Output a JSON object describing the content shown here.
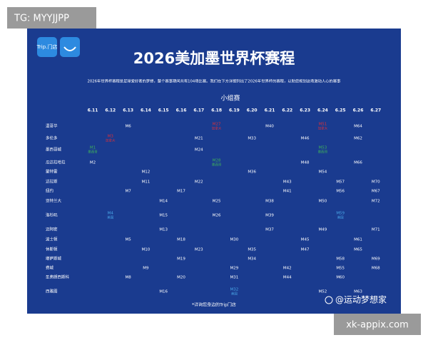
{
  "badge_top": "TG: MYYJJPP",
  "badge_bottom": "xk-appix.com",
  "logo": "Trip.门店",
  "title": "2026美加墨世界杯赛程",
  "subtitle": "2026年世界杯赛程是足球爱好者的梦想，整个赛事期间共有104场比赛。我们在下方详细列出了2026年世界杯的赛程，以助您规划这场激动人心的赛事",
  "stage": "小组赛",
  "dates": [
    "6.11",
    "6.12",
    "6.13",
    "6.14",
    "6.15",
    "6.16",
    "6.17",
    "6.18",
    "6.19",
    "6.20",
    "6.21",
    "6.22",
    "6.23",
    "6.24",
    "6.25",
    "6.26",
    "6.27"
  ],
  "rows": [
    {
      "city": "温哥华",
      "cells": [
        null,
        null,
        "M6",
        null,
        null,
        null,
        null,
        {
          "label": "M27",
          "note": "加拿大",
          "color": "#d9303a"
        },
        null,
        null,
        "M40",
        null,
        null,
        {
          "label": "M51",
          "note": "加拿大",
          "color": "#d9303a"
        },
        null,
        "M64",
        null
      ]
    },
    {
      "city": "多伦多",
      "cells": [
        null,
        {
          "label": "M3",
          "note": "加拿大",
          "color": "#d9303a"
        },
        null,
        null,
        null,
        null,
        "M21",
        null,
        null,
        "M33",
        null,
        null,
        "M46",
        null,
        null,
        "M62",
        null
      ]
    },
    {
      "city": "墨西哥城",
      "cells": [
        {
          "label": "M1",
          "note": "墨西哥",
          "color": "#3fb25a"
        },
        null,
        null,
        null,
        null,
        null,
        "M24",
        null,
        null,
        null,
        null,
        null,
        null,
        {
          "label": "M53",
          "note": "墨西哥",
          "color": "#3fb25a"
        },
        null,
        null,
        null
      ]
    },
    {
      "city": "瓜达拉哈拉",
      "cells": [
        "M2",
        null,
        null,
        null,
        null,
        null,
        null,
        {
          "label": "M28",
          "note": "墨西哥",
          "color": "#3fb25a"
        },
        null,
        null,
        null,
        null,
        "M48",
        null,
        null,
        "M66",
        null
      ]
    },
    {
      "city": "蒙特雷",
      "cells": [
        null,
        null,
        null,
        "M12",
        null,
        null,
        null,
        null,
        null,
        "M36",
        null,
        null,
        null,
        "M54",
        null,
        null,
        null
      ]
    },
    {
      "city": "达拉斯",
      "cells": [
        null,
        null,
        null,
        "M11",
        null,
        null,
        "M22",
        null,
        null,
        null,
        null,
        "M43",
        null,
        null,
        "M57",
        null,
        "M70"
      ]
    },
    {
      "city": "纽约",
      "cells": [
        null,
        null,
        "M7",
        null,
        null,
        "M17",
        null,
        null,
        null,
        null,
        null,
        "M41",
        null,
        null,
        "M56",
        null,
        "M67"
      ]
    },
    {
      "city": "亚特兰大",
      "cells": [
        null,
        null,
        null,
        null,
        "M14",
        null,
        null,
        "M25",
        null,
        null,
        "M38",
        null,
        null,
        "M50",
        null,
        null,
        "M72"
      ]
    },
    {
      "city": "洛杉矶",
      "cells": [
        null,
        {
          "label": "M4",
          "note": "美国",
          "color": "#4aa8e8"
        },
        null,
        null,
        "M15",
        null,
        null,
        "M26",
        null,
        null,
        "M39",
        null,
        null,
        null,
        {
          "label": "M59",
          "note": "美国",
          "color": "#4aa8e8"
        },
        null,
        null
      ]
    },
    {
      "city": "迈阿密",
      "cells": [
        null,
        null,
        null,
        null,
        "M13",
        null,
        null,
        null,
        null,
        null,
        "M37",
        null,
        null,
        "M49",
        null,
        null,
        "M71"
      ]
    },
    {
      "city": "波士顿",
      "cells": [
        null,
        null,
        "M5",
        null,
        null,
        "M18",
        null,
        null,
        "M30",
        null,
        null,
        null,
        "M45",
        null,
        null,
        "M61",
        null
      ]
    },
    {
      "city": "休斯顿",
      "cells": [
        null,
        null,
        null,
        "M10",
        null,
        null,
        "M23",
        null,
        null,
        "M35",
        null,
        null,
        "M47",
        null,
        null,
        "M65",
        null
      ]
    },
    {
      "city": "堪萨斯城",
      "cells": [
        null,
        null,
        null,
        null,
        null,
        "M19",
        null,
        null,
        null,
        "M34",
        null,
        null,
        null,
        null,
        "M58",
        null,
        "M69"
      ]
    },
    {
      "city": "费城",
      "cells": [
        null,
        null,
        null,
        "M9",
        null,
        null,
        null,
        null,
        "M29",
        null,
        null,
        "M42",
        null,
        null,
        "M55",
        null,
        "M68"
      ]
    },
    {
      "city": "圣弗朗西斯科",
      "cells": [
        null,
        null,
        "M8",
        null,
        null,
        "M20",
        null,
        null,
        "M31",
        null,
        null,
        "M44",
        null,
        null,
        "M60",
        null,
        null
      ]
    },
    {
      "city": "西雅图",
      "cells": [
        null,
        null,
        null,
        null,
        "M16",
        null,
        null,
        null,
        {
          "label": "M32",
          "note": "美国",
          "color": "#4aa8e8"
        },
        null,
        null,
        null,
        null,
        "M52",
        null,
        "M63",
        null
      ]
    }
  ],
  "footer": "*详询您身边的Trip门店",
  "watermark": "@运动梦想家"
}
